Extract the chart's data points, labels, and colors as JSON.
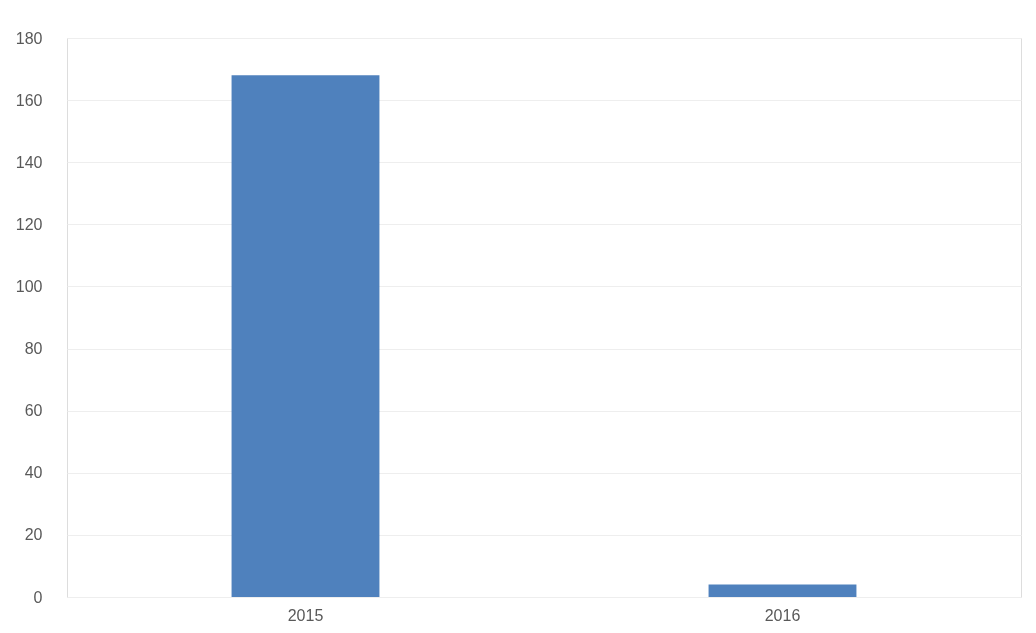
{
  "chart_data": {
    "type": "bar",
    "categories": [
      "2015",
      "2016"
    ],
    "values": [
      168,
      4
    ],
    "color": "#4f81bd",
    "ylim": [
      0,
      180
    ],
    "yticks": [
      0,
      20,
      40,
      60,
      80,
      100,
      120,
      140,
      160,
      180
    ],
    "grid": "y"
  }
}
